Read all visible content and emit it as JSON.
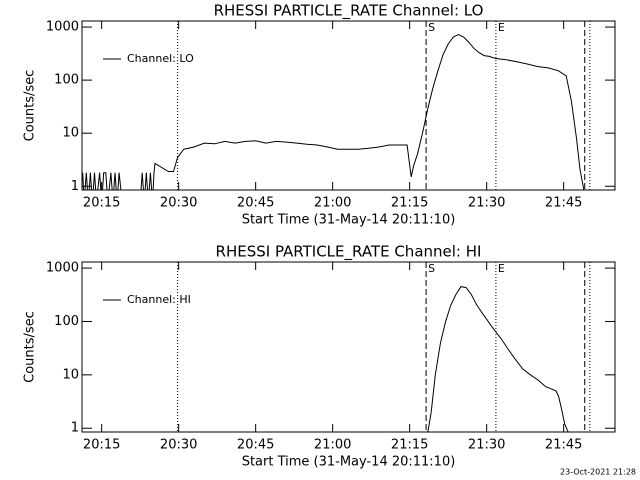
{
  "chart_data": [
    {
      "type": "line",
      "title": "RHESSI PARTICLE_RATE Channel: LO",
      "xlabel": "Start Time (31-May-14 20:11:10)",
      "ylabel": "Counts/sec",
      "log_y": true,
      "legend": "upper left",
      "xlim": [
        1211.17,
        1315
      ],
      "ylim": [
        0.85,
        1300
      ],
      "xticks": [
        {
          "value": 1215,
          "label": "20:15"
        },
        {
          "value": 1230,
          "label": "20:30"
        },
        {
          "value": 1245,
          "label": "20:45"
        },
        {
          "value": 1260,
          "label": "21:00"
        },
        {
          "value": 1275,
          "label": "21:15"
        },
        {
          "value": 1290,
          "label": "21:30"
        },
        {
          "value": 1305,
          "label": "21:45"
        }
      ],
      "yticks": [
        1,
        10,
        100,
        1000
      ],
      "vlines": [
        {
          "x": 1229.8,
          "style": "dotted"
        },
        {
          "x": 1278.2,
          "style": "dashed",
          "label": "S"
        },
        {
          "x": 1291.8,
          "style": "dotted",
          "label": "E"
        },
        {
          "x": 1309.1,
          "style": "dashed"
        },
        {
          "x": 1310.1,
          "style": "dotted"
        }
      ],
      "series": [
        {
          "name": "Channel: LO",
          "color": "#000000",
          "x": [
            1211.3,
            1211.6,
            1212.0,
            1212.4,
            1212.8,
            1213.2,
            1213.6,
            1214.0,
            1214.6,
            1215.0,
            1215.4,
            1215.8,
            1216.2,
            1216.8,
            1217.2,
            1217.6,
            1218.0,
            1218.4,
            1219.0,
            1222.5,
            1222.9,
            1223.3,
            1223.7,
            1224.1,
            1224.5,
            1224.9,
            1225.2,
            1225.4,
            1228.0,
            1228.4,
            1229.0,
            1229.8,
            1231,
            1233,
            1235,
            1237,
            1239,
            1241,
            1243,
            1245,
            1247,
            1249,
            1251,
            1253,
            1255,
            1257,
            1259,
            1261,
            1263,
            1265,
            1267,
            1269,
            1271,
            1273,
            1274.5,
            1275.3,
            1275.8,
            1276.5,
            1277.5,
            1278.5,
            1279.5,
            1280.5,
            1281.5,
            1282.5,
            1283.5,
            1284.5,
            1285.5,
            1286.5,
            1287.5,
            1288.5,
            1289.5,
            1290.5,
            1291.5,
            1292.5,
            1294,
            1296,
            1298,
            1300,
            1302,
            1304,
            1305.5,
            1306.5,
            1307.5,
            1308.2,
            1309.0
          ],
          "values": [
            1.8,
            0.5,
            1.8,
            0.5,
            1.8,
            0.5,
            1.8,
            0.5,
            1.8,
            0.5,
            1.8,
            1.8,
            0.5,
            1.8,
            0.5,
            1.8,
            0.5,
            1.8,
            0.5,
            0.5,
            1.8,
            0.5,
            1.8,
            0.5,
            1.8,
            0.5,
            1.8,
            2.7,
            1.9,
            1.9,
            1.9,
            3.5,
            5,
            5.5,
            6.5,
            6.3,
            7,
            6.5,
            7,
            7.2,
            6.5,
            7,
            6.8,
            6.5,
            6.2,
            6,
            5.5,
            5,
            5,
            5,
            5.2,
            5.5,
            6,
            6,
            6,
            1.5,
            2.5,
            4,
            10,
            28,
            70,
            150,
            300,
            480,
            650,
            720,
            650,
            520,
            400,
            330,
            290,
            280,
            260,
            250,
            240,
            220,
            200,
            180,
            170,
            150,
            120,
            40,
            8,
            2,
            0.8
          ]
        }
      ]
    },
    {
      "type": "line",
      "title": "RHESSI PARTICLE_RATE Channel: HI",
      "xlabel": "Start Time (31-May-14 20:11:10)",
      "ylabel": "Counts/sec",
      "log_y": true,
      "legend": "upper left",
      "xlim": [
        1211.17,
        1315
      ],
      "ylim": [
        0.85,
        1300
      ],
      "xticks": [
        {
          "value": 1215,
          "label": "20:15"
        },
        {
          "value": 1230,
          "label": "20:30"
        },
        {
          "value": 1245,
          "label": "20:45"
        },
        {
          "value": 1260,
          "label": "21:00"
        },
        {
          "value": 1275,
          "label": "21:15"
        },
        {
          "value": 1290,
          "label": "21:30"
        },
        {
          "value": 1305,
          "label": "21:45"
        }
      ],
      "yticks": [
        1,
        10,
        100,
        1000
      ],
      "vlines": [
        {
          "x": 1229.8,
          "style": "dotted"
        },
        {
          "x": 1278.2,
          "style": "dashed",
          "label": "S"
        },
        {
          "x": 1291.8,
          "style": "dotted",
          "label": "E"
        },
        {
          "x": 1309.1,
          "style": "dashed"
        },
        {
          "x": 1310.1,
          "style": "dotted"
        }
      ],
      "series": [
        {
          "name": "Channel: HI",
          "color": "#000000",
          "x": [
            1278.5,
            1279.2,
            1280.0,
            1281.0,
            1282.0,
            1283.0,
            1284.0,
            1285.0,
            1286.0,
            1287.0,
            1288.0,
            1289.0,
            1290.0,
            1291.0,
            1292.0,
            1293.0,
            1294.0,
            1295.5,
            1297.0,
            1298.5,
            1300.0,
            1301.5,
            1302.5,
            1303.5,
            1304.0,
            1304.5,
            1305.2,
            1306.0
          ],
          "values": [
            0.8,
            2,
            10,
            40,
            100,
            200,
            320,
            450,
            430,
            320,
            210,
            150,
            110,
            80,
            60,
            45,
            32,
            20,
            13,
            10,
            8,
            6,
            5.5,
            5,
            4,
            2.5,
            1.2,
            0.8
          ]
        }
      ]
    }
  ]
}
